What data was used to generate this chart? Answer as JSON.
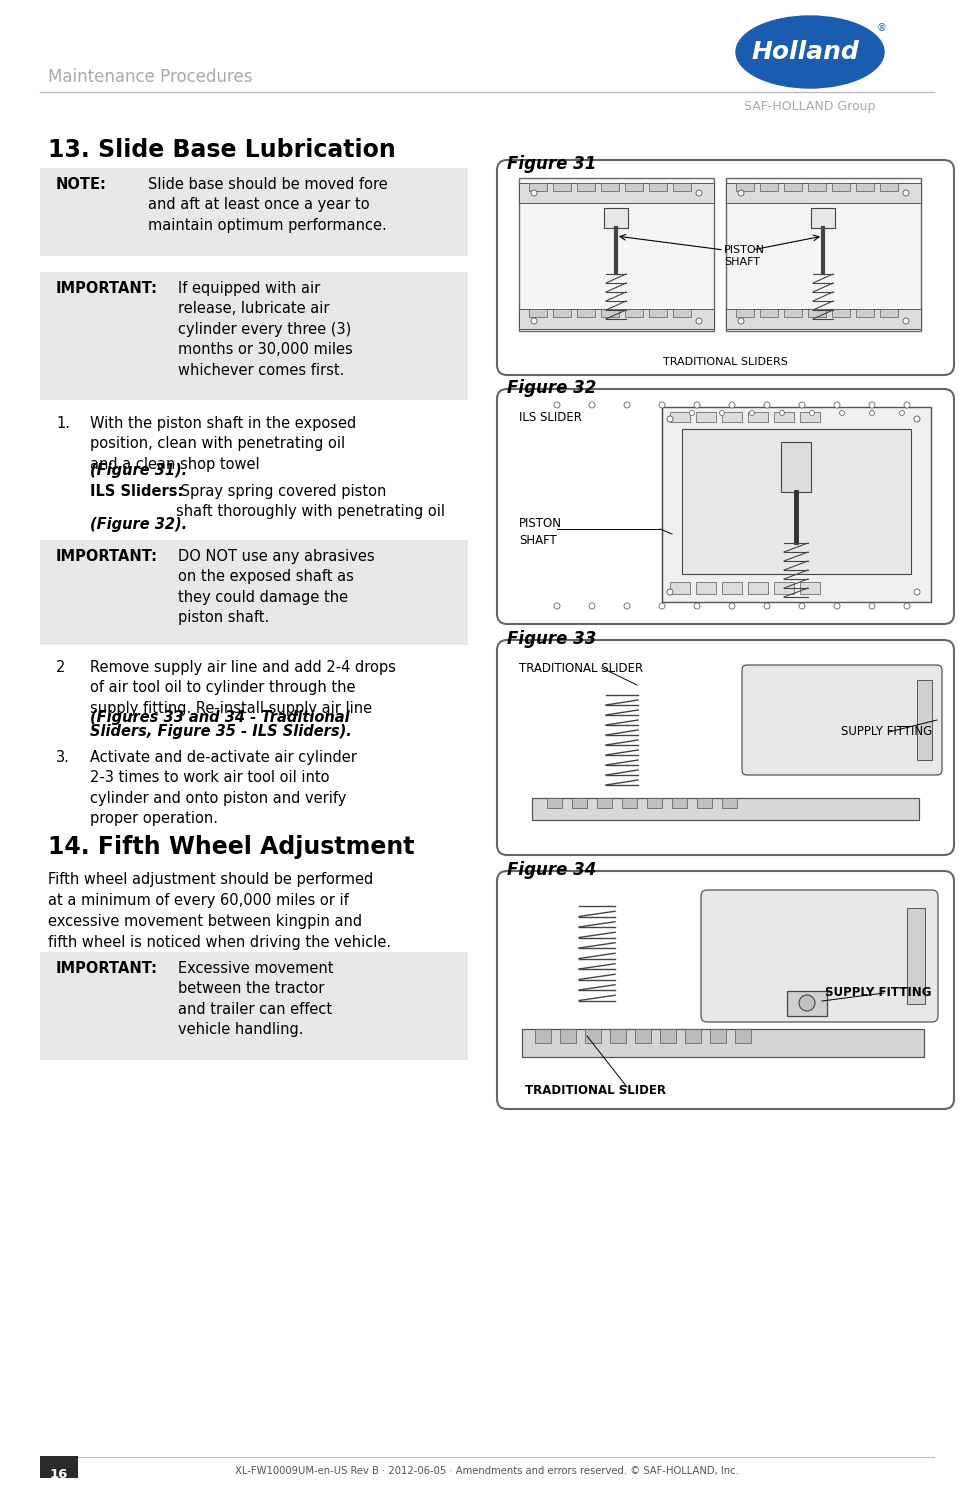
{
  "page_header": "Maintenance Procedures",
  "header_color": "#aaaaaa",
  "logo_text": "Holland",
  "logo_subtext": "SAF-HOLLAND Group",
  "logo_bg": "#1a5cb0",
  "section13_title": "13. Slide Base Lubrication",
  "note_label": "NOTE:",
  "note_text": "Slide base should be moved fore\nand aft at least once a year to\nmaintain optimum performance.",
  "important1_label": "IMPORTANT:",
  "important1_text": "If equipped with air\nrelease, lubricate air\ncylinder every three (3)\nmonths or 30,000 miles\nwhichever comes first.",
  "step1_pre": "With the piston shaft in the exposed\nposition, clean with penetrating oil\nand a clean shop towel ",
  "step1_ref": "(Figure 31).",
  "step1b_label": "ILS Sliders:",
  "step1b_text": " Spray spring covered piston\nshaft thoroughly with penetrating oil\n",
  "step1b_ref": "(Figure 32).",
  "important2_label": "IMPORTANT:",
  "important2_text": "DO NOT use any abrasives\non the exposed shaft as\nthey could damage the\npiston shaft.",
  "step2_pre": "Remove supply air line and add 2-4 drops\nof air tool oil to cylinder through the\nsupply fitting. Re-install supply air line\n",
  "step2_ref_line1": "(Figures 33 and 34 - Traditional",
  "step2_ref_line2": "Sliders, Figure 35 - ILS Sliders).",
  "step3_text": "Activate and de-activate air cylinder\n2-3 times to work air tool oil into\ncylinder and onto piston and verify\nproper operation.",
  "section14_title": "14. Fifth Wheel Adjustment",
  "section14_body": "Fifth wheel adjustment should be performed\nat a minimum of every 60,000 miles or if\nexcessive movement between kingpin and\nfifth wheel is noticed when driving the vehicle.",
  "important3_label": "IMPORTANT:",
  "important3_text": "Excessive movement\nbetween the tractor\nand trailer can effect\nvehicle handling.",
  "fig31_label": "Figure 31",
  "fig32_label": "Figure 32",
  "fig33_label": "Figure 33",
  "fig34_label": "Figure 34",
  "fig31_sublabel": "TRADITIONAL SLIDERS",
  "fig31_piston": "PISTON\nSHAFT",
  "fig32_ils": "ILS SLIDER",
  "fig32_piston": "PISTON\nSHAFT",
  "fig33_trad": "TRADITIONAL SLIDER",
  "fig33_supply": "SUPPLY FITTING",
  "fig34_trad": "TRADITIONAL SLIDER",
  "fig34_supply": "SUPPLY FITTING",
  "page_number": "16",
  "footer_text": "XL-FW10009UM-en-US Rev B · 2012-06-05 · Amendments and errors reserved. © SAF-HOLLAND, Inc.",
  "bg_box_color": "#e8e8e8",
  "text_color": "#1a1a1a",
  "divider_color": "#bbbbbb"
}
